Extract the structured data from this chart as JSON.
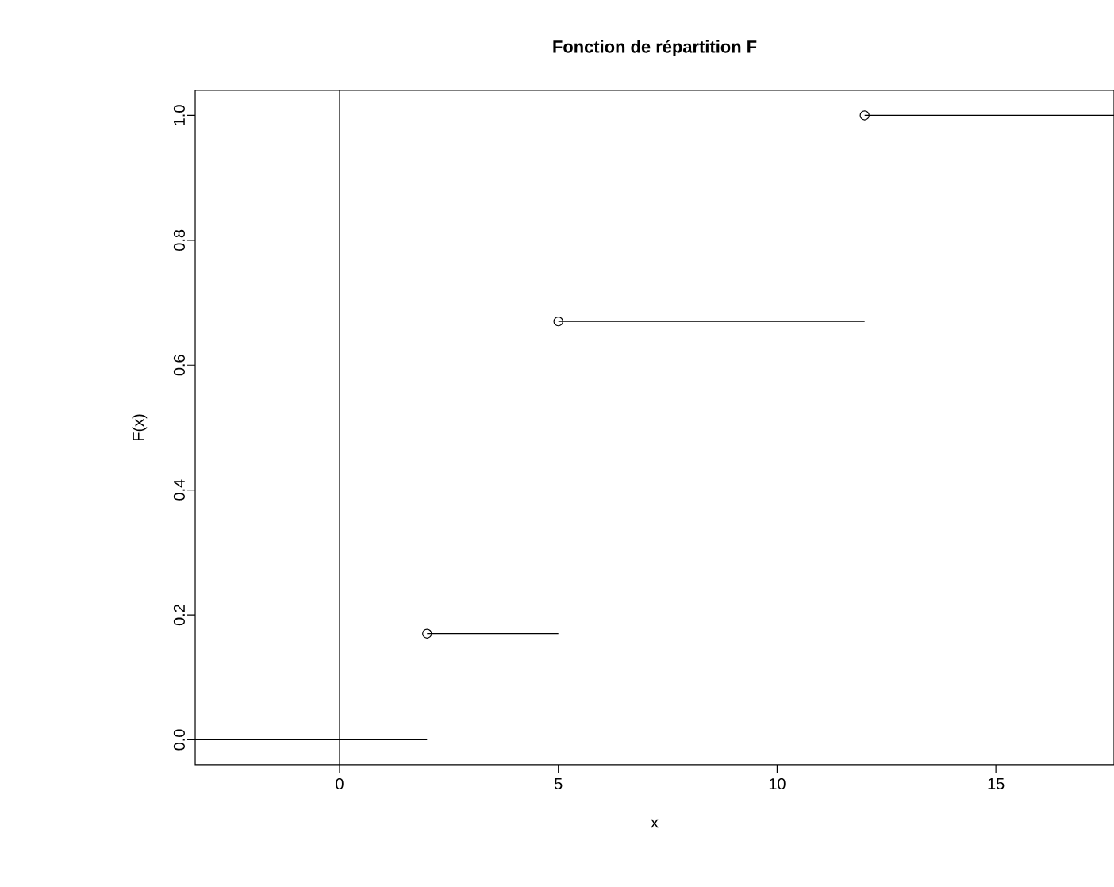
{
  "chart_data": {
    "type": "line",
    "title": "Fonction de répartition F",
    "xlabel": "x",
    "ylabel": "F(x)",
    "xlim": [
      -3.3,
      17.7
    ],
    "ylim": [
      -0.04,
      1.04
    ],
    "xticks": [
      0,
      5,
      10,
      15
    ],
    "yticks": [
      {
        "value": 0,
        "label": "0.0"
      },
      {
        "value": 0.2,
        "label": "0.2"
      },
      {
        "value": 0.4,
        "label": "0.4"
      },
      {
        "value": 0.6,
        "label": "0.6"
      },
      {
        "value": 0.8,
        "label": "0.8"
      },
      {
        "value": 1,
        "label": "1.0"
      }
    ],
    "series": [
      {
        "color": "#000000",
        "marker": "none",
        "x": [
          -3.3,
          2
        ],
        "values": [
          0,
          0
        ]
      },
      {
        "color": "#000000",
        "marker": "none",
        "x": [
          2,
          5
        ],
        "values": [
          0.17,
          0.17
        ]
      },
      {
        "color": "#000000",
        "marker": "none",
        "x": [
          5,
          12
        ],
        "values": [
          0.67,
          0.67
        ]
      },
      {
        "color": "#000000",
        "marker": "none",
        "x": [
          12,
          17.7
        ],
        "values": [
          1,
          1
        ]
      },
      {
        "type": "scatter",
        "color": "#000000",
        "marker": "circle",
        "x": [
          2,
          5,
          12
        ],
        "values": [
          0.17,
          0.67,
          1
        ]
      }
    ],
    "ref_lines": [
      {
        "axis": "x",
        "value": 0,
        "color": "#000000"
      }
    ]
  }
}
